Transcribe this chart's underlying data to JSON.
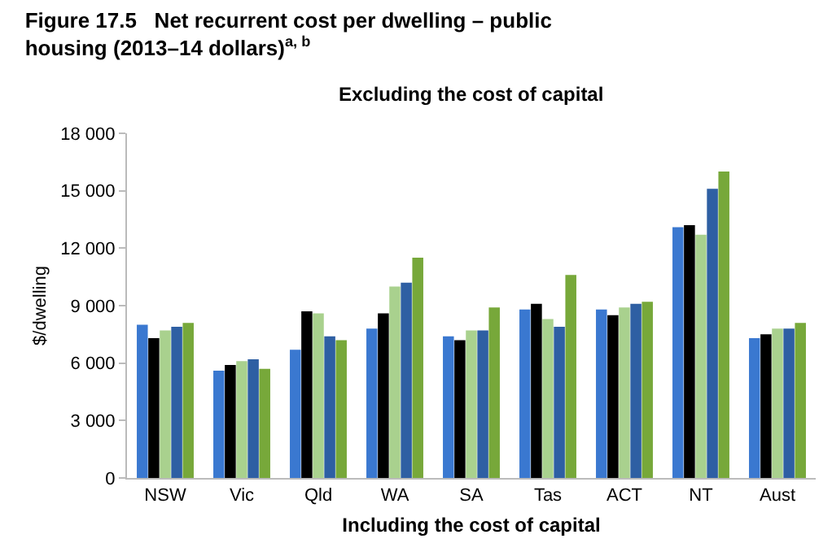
{
  "chart_data": {
    "type": "bar",
    "title": "Figure 17.5   Net recurrent cost per dwelling – public housing (2013–14 dollars)$^{a, b}$",
    "subtitle": "Excluding the cost of capital",
    "xlabel": "Including the cost of capital",
    "ylabel": "$/dwelling",
    "categories": [
      "NSW",
      "Vic",
      "Qld",
      "WA",
      "SA",
      "Tas",
      "ACT",
      "NT",
      "Aust"
    ],
    "series": [
      {
        "color": "#3a78d0",
        "values": [
          8000,
          5600,
          6700,
          7800,
          7400,
          8800,
          8800,
          13100,
          7300
        ]
      },
      {
        "color": "#000000",
        "values": [
          7300,
          5900,
          8700,
          8600,
          7200,
          9100,
          8500,
          13200,
          7500
        ]
      },
      {
        "color": "#a9d18e",
        "values": [
          7700,
          6100,
          8600,
          10000,
          7700,
          8300,
          8900,
          12700,
          7800
        ]
      },
      {
        "color": "#2e5fa3",
        "values": [
          7900,
          6200,
          7400,
          10200,
          7700,
          7900,
          9100,
          15100,
          7800
        ]
      },
      {
        "color": "#77a83a",
        "values": [
          8100,
          5700,
          7200,
          11500,
          8900,
          10600,
          9200,
          16000,
          8100
        ]
      }
    ],
    "ylim": [
      0,
      18000
    ],
    "yticks": [
      0,
      {
        "value": 3000,
        "label": "3 000"
      },
      {
        "value": 6000,
        "label": "6 000"
      },
      {
        "value": 9000,
        "label": "9 000"
      },
      {
        "value": 12000,
        "label": "12 000"
      },
      {
        "value": 15000,
        "label": "15 000"
      },
      {
        "value": 18000,
        "label": "18 000"
      }
    ],
    "grid": false
  }
}
